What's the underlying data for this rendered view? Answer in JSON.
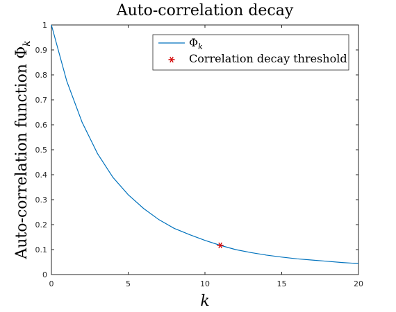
{
  "chart_data": {
    "type": "line",
    "title": "Auto-correlation decay",
    "xlabel": "k",
    "ylabel": "Auto-correlation function Φ",
    "ylabel_sub": "k",
    "xlim": [
      0,
      20
    ],
    "ylim": [
      0,
      1
    ],
    "xticks": [
      0,
      5,
      10,
      15,
      20
    ],
    "yticks": [
      0,
      0.1,
      0.2,
      0.3,
      0.4,
      0.5,
      0.6,
      0.7,
      0.8,
      0.9,
      1
    ],
    "grid": false,
    "legend_position": "top-right",
    "series": [
      {
        "name": "Φ",
        "name_sub": "k",
        "color": "#0072BD",
        "x": [
          0,
          1,
          2,
          3,
          4,
          5,
          6,
          7,
          8,
          9,
          10,
          11,
          12,
          13,
          14,
          15,
          16,
          17,
          18,
          19,
          20
        ],
        "y": [
          1.0,
          0.775,
          0.61,
          0.485,
          0.39,
          0.32,
          0.265,
          0.22,
          0.185,
          0.16,
          0.137,
          0.117,
          0.1,
          0.088,
          0.078,
          0.07,
          0.063,
          0.058,
          0.053,
          0.048,
          0.044
        ]
      }
    ],
    "markers": [
      {
        "name": "Correlation decay threshold",
        "color": "#D40000",
        "symbol": "*",
        "x": 11,
        "y": 0.117
      }
    ]
  }
}
